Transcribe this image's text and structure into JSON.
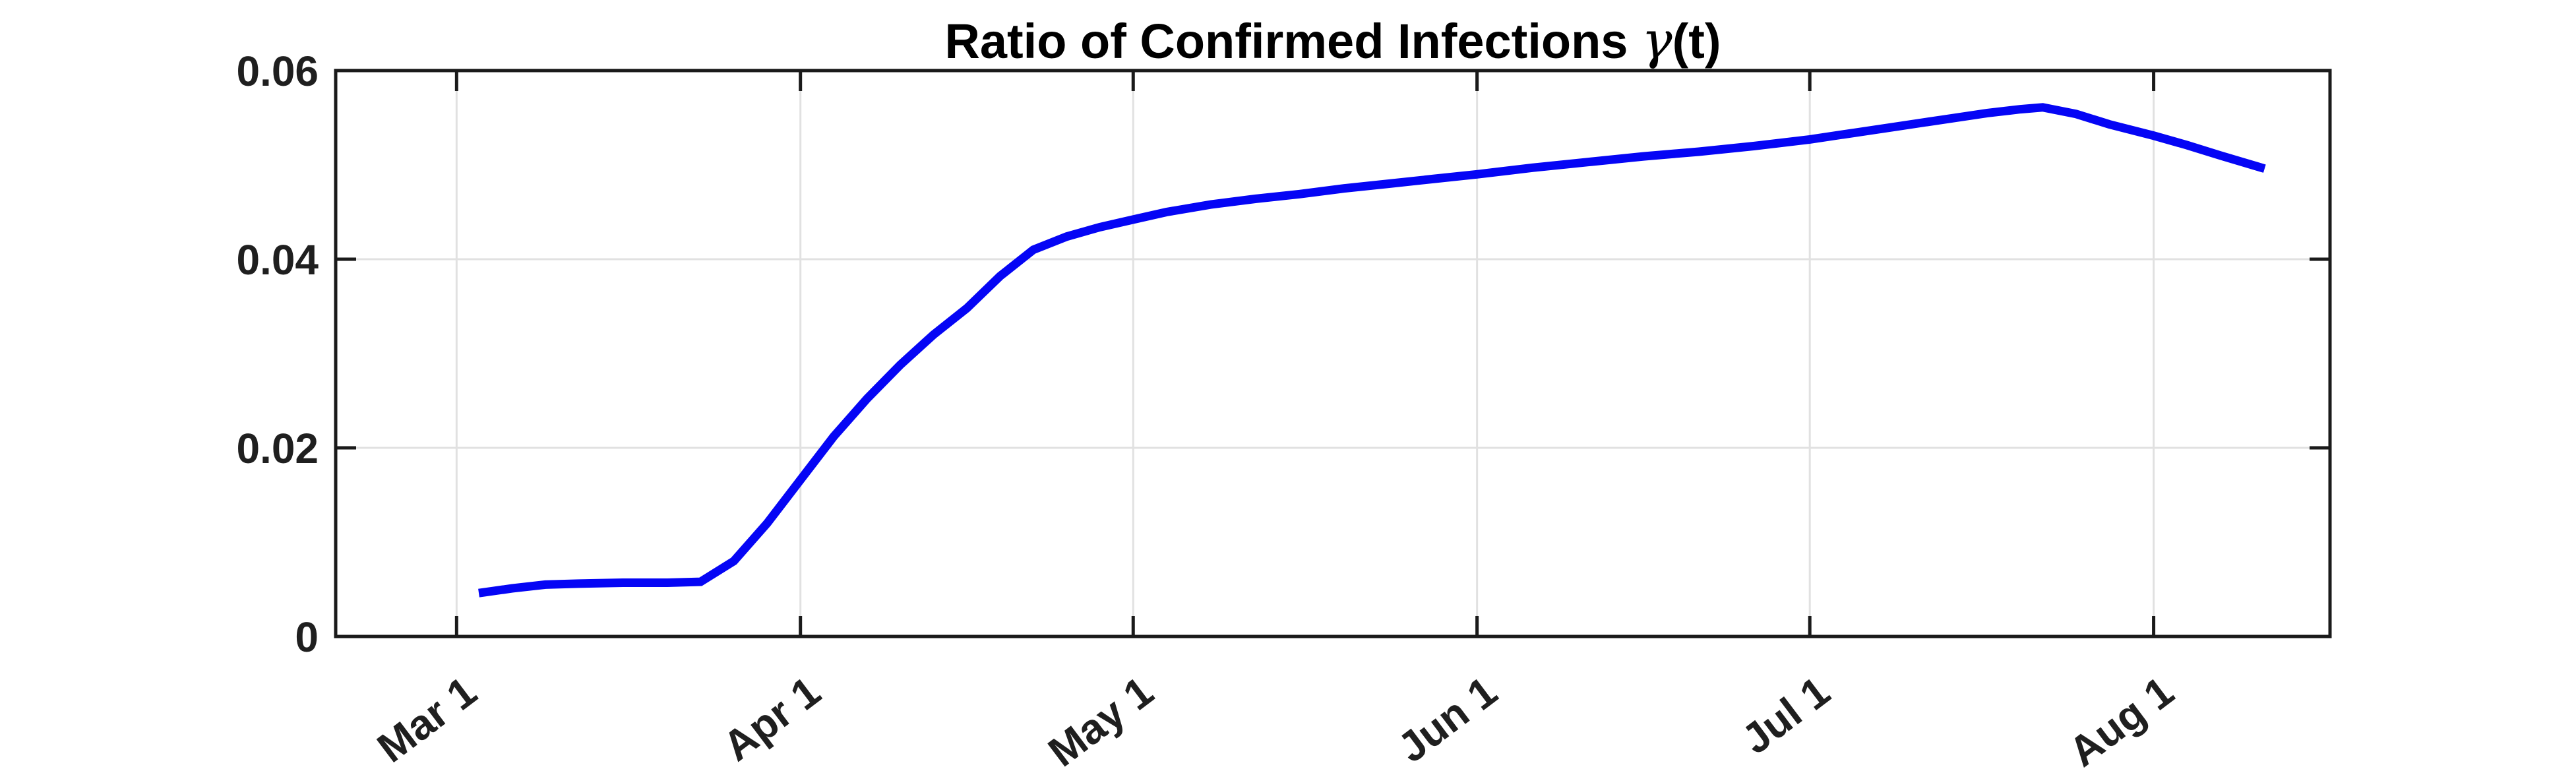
{
  "figure": {
    "background": "#FFFFFF",
    "title_parts": {
      "pre": "Ratio of Confirmed Infections ",
      "gamma": "γ",
      "post": "(t)"
    }
  },
  "colors": {
    "line": "#0505F5",
    "grid": "#E1E1E1",
    "axis": "#1A1A1A",
    "text": "#1F1F1F",
    "title": "#000000"
  },
  "chart_data": {
    "type": "line",
    "title": "Ratio of Confirmed Infections γ(t)",
    "xlabel": "",
    "ylabel": "",
    "grid": true,
    "legend_position": "none",
    "x_axis": {
      "tick_labels": [
        "Mar 1",
        "Apr 1",
        "May 1",
        "Jun 1",
        "Jul 1",
        "Aug 1"
      ],
      "tick_days": [
        0,
        31,
        61,
        92,
        122,
        153
      ],
      "range_days": [
        -10.9,
        168.9
      ],
      "tick_rotation_deg": 37
    },
    "y_axis": {
      "tick_labels": [
        "0",
        "0.02",
        "0.04",
        "0.06"
      ],
      "tick_values": [
        0,
        0.02,
        0.04,
        0.06
      ],
      "range": [
        0,
        0.06
      ]
    },
    "series": [
      {
        "name": "gamma(t) ratio of confirmed infections",
        "color": "#0505F5",
        "line_width": 13,
        "points_day_value": [
          [
            2,
            0.0046
          ],
          [
            5,
            0.0051
          ],
          [
            8,
            0.0055
          ],
          [
            11,
            0.0056
          ],
          [
            15,
            0.0057
          ],
          [
            19,
            0.0057
          ],
          [
            22,
            0.0058
          ],
          [
            25,
            0.008
          ],
          [
            28,
            0.012
          ],
          [
            31,
            0.0166
          ],
          [
            34,
            0.0212
          ],
          [
            37,
            0.0252
          ],
          [
            40,
            0.0288
          ],
          [
            43,
            0.032
          ],
          [
            46,
            0.0348
          ],
          [
            49,
            0.0382
          ],
          [
            52,
            0.041
          ],
          [
            55,
            0.0424
          ],
          [
            58,
            0.0434
          ],
          [
            61,
            0.0442
          ],
          [
            64,
            0.045
          ],
          [
            68,
            0.0458
          ],
          [
            72,
            0.0464
          ],
          [
            76,
            0.0469
          ],
          [
            80,
            0.0475
          ],
          [
            84,
            0.048
          ],
          [
            88,
            0.0485
          ],
          [
            92,
            0.049
          ],
          [
            97,
            0.0497
          ],
          [
            102,
            0.0503
          ],
          [
            107,
            0.0509
          ],
          [
            112,
            0.0514
          ],
          [
            117,
            0.052
          ],
          [
            122,
            0.0527
          ],
          [
            126,
            0.0534
          ],
          [
            130,
            0.0541
          ],
          [
            134,
            0.0548
          ],
          [
            138,
            0.0555
          ],
          [
            141,
            0.0559
          ],
          [
            143,
            0.0561
          ],
          [
            146,
            0.0554
          ],
          [
            149,
            0.0543
          ],
          [
            153,
            0.0531
          ],
          [
            156,
            0.0521
          ],
          [
            159,
            0.051
          ],
          [
            163,
            0.0496
          ]
        ]
      }
    ]
  }
}
